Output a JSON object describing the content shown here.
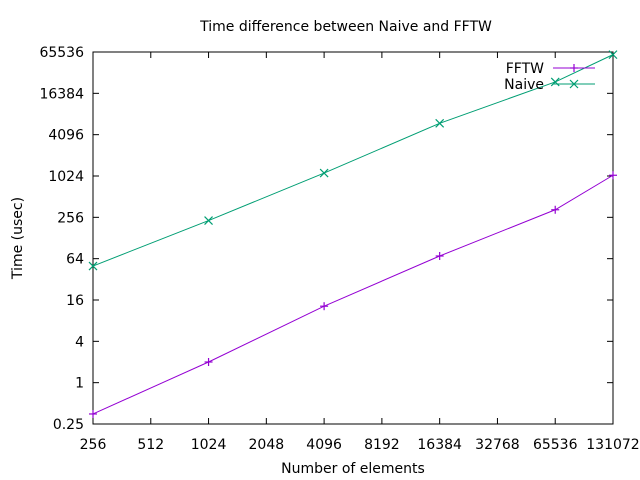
{
  "chart_data": {
    "type": "line",
    "title": "Time difference between Naive and FFTW",
    "xlabel": "Number of elements",
    "ylabel": "Time (usec)",
    "x_scale": "log2",
    "y_scale": "log2",
    "xlim": [
      256,
      131072
    ],
    "ylim": [
      0.25,
      65536
    ],
    "x_ticks": [
      256,
      512,
      1024,
      2048,
      4096,
      8192,
      16384,
      32768,
      65536,
      131072
    ],
    "x_tick_labels": [
      "256",
      "512",
      "1024",
      "2048",
      "4096",
      "8192",
      "16384",
      "32768",
      "65536",
      "131072"
    ],
    "y_ticks": [
      0.25,
      1,
      4,
      16,
      64,
      256,
      1024,
      4096,
      16384,
      65536
    ],
    "y_tick_labels": [
      "0.25",
      "1",
      "4",
      "16",
      "64",
      "256",
      "1024",
      "4096",
      "16384",
      "65536"
    ],
    "legend_position": "top-right",
    "grid": false,
    "x": [
      256,
      1024,
      4096,
      16384,
      65536,
      131072
    ],
    "series": [
      {
        "name": "FFTW",
        "color": "#9400d3",
        "marker": "plus",
        "values": [
          0.35,
          2,
          13,
          70,
          330,
          1050
        ]
      },
      {
        "name": "Naive",
        "color": "#009e73",
        "marker": "cross",
        "values": [
          50,
          230,
          1130,
          6000,
          24000,
          60000
        ]
      }
    ]
  }
}
